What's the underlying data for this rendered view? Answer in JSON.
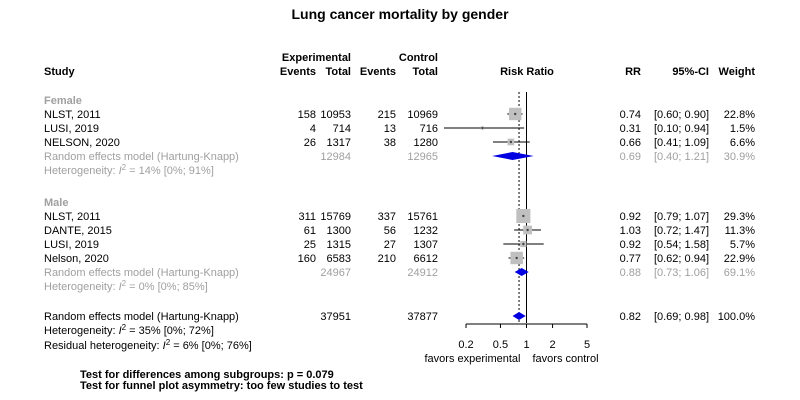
{
  "chart_data": {
    "type": "forest",
    "title": "Lung cancer mortality by gender",
    "columns": {
      "study": "Study",
      "exp_group": "Experimental",
      "ctrl_group": "Control",
      "events": "Events",
      "total": "Total",
      "plot": "Risk Ratio",
      "rr": "RR",
      "ci": "95%-CI",
      "weight": "Weight"
    },
    "subgroups": [
      {
        "name": "Female",
        "studies": [
          {
            "study": "NLST, 2011",
            "exp_events": "158",
            "exp_total": "10953",
            "ctrl_events": "215",
            "ctrl_total": "10969",
            "rr_text": "0.74",
            "ci_text": "[0.60; 0.90]",
            "weight_text": "22.8%",
            "rr": 0.74,
            "lower": 0.6,
            "upper": 0.9,
            "weight": 22.8
          },
          {
            "study": "LUSI, 2019",
            "exp_events": "4",
            "exp_total": "714",
            "ctrl_events": "13",
            "ctrl_total": "716",
            "rr_text": "0.31",
            "ci_text": "[0.10; 0.94]",
            "weight_text": "1.5%",
            "rr": 0.31,
            "lower": 0.1,
            "upper": 0.94,
            "weight": 1.5
          },
          {
            "study": "NELSON, 2020",
            "exp_events": "26",
            "exp_total": "1317",
            "ctrl_events": "38",
            "ctrl_total": "1280",
            "rr_text": "0.66",
            "ci_text": "[0.41; 1.09]",
            "weight_text": "6.6%",
            "rr": 0.66,
            "lower": 0.41,
            "upper": 1.09,
            "weight": 6.6
          }
        ],
        "summary": {
          "label": "Random effects model  (Hartung-Knapp)",
          "exp_total": "12984",
          "ctrl_total": "12965",
          "rr_text": "0.69",
          "ci_text": "[0.40; 1.21]",
          "weight_text": "30.9%",
          "rr": 0.69,
          "lower": 0.4,
          "upper": 1.21
        },
        "heterogeneity": {
          "prefix": "Heterogeneity: ",
          "symbol": "I",
          "sup": "2",
          "rest": " = 14% [0%; 91%]"
        }
      },
      {
        "name": "Male",
        "studies": [
          {
            "study": "NLST, 2011",
            "exp_events": "311",
            "exp_total": "15769",
            "ctrl_events": "337",
            "ctrl_total": "15761",
            "rr_text": "0.92",
            "ci_text": "[0.79; 1.07]",
            "weight_text": "29.3%",
            "rr": 0.92,
            "lower": 0.79,
            "upper": 1.07,
            "weight": 29.3
          },
          {
            "study": "DANTE, 2015",
            "exp_events": "61",
            "exp_total": "1300",
            "ctrl_events": "56",
            "ctrl_total": "1232",
            "rr_text": "1.03",
            "ci_text": "[0.72; 1.47]",
            "weight_text": "11.3%",
            "rr": 1.03,
            "lower": 0.72,
            "upper": 1.47,
            "weight": 11.3
          },
          {
            "study": "LUSI, 2019",
            "exp_events": "25",
            "exp_total": "1315",
            "ctrl_events": "27",
            "ctrl_total": "1307",
            "rr_text": "0.92",
            "ci_text": "[0.54; 1.58]",
            "weight_text": "5.7%",
            "rr": 0.92,
            "lower": 0.54,
            "upper": 1.58,
            "weight": 5.7
          },
          {
            "study": "Nelson, 2020",
            "exp_events": "160",
            "exp_total": "6583",
            "ctrl_events": "210",
            "ctrl_total": "6612",
            "rr_text": "0.77",
            "ci_text": "[0.62; 0.94]",
            "weight_text": "22.9%",
            "rr": 0.77,
            "lower": 0.62,
            "upper": 0.94,
            "weight": 22.9
          }
        ],
        "summary": {
          "label": "Random effects model  (Hartung-Knapp)",
          "exp_total": "24967",
          "ctrl_total": "24912",
          "rr_text": "0.88",
          "ci_text": "[0.73; 1.06]",
          "weight_text": "69.1%",
          "rr": 0.88,
          "lower": 0.73,
          "upper": 1.06
        },
        "heterogeneity": {
          "prefix": "Heterogeneity: ",
          "symbol": "I",
          "sup": "2",
          "rest": " = 0% [0%; 85%]"
        }
      }
    ],
    "overall": {
      "label": "Random effects model  (Hartung-Knapp)",
      "exp_total": "37951",
      "ctrl_total": "37877",
      "rr_text": "0.82",
      "ci_text": "[0.69; 0.98]",
      "weight_text": "100.0%",
      "rr": 0.82,
      "lower": 0.69,
      "upper": 0.98,
      "heterogeneity": {
        "prefix": "Heterogeneity: ",
        "symbol": "I",
        "sup": "2",
        "rest": " = 35% [0%; 72%]"
      },
      "residual": {
        "prefix": "Residual heterogeneity: ",
        "symbol": "I",
        "sup": "2",
        "rest": " = 6% [0%; 76%]"
      }
    },
    "x_axis": {
      "scale": "log",
      "ticks": [
        0.2,
        0.5,
        1,
        2,
        5
      ],
      "tick_labels": [
        "0.2",
        "0.5",
        "1",
        "2",
        "5"
      ],
      "range": [
        0.2,
        5
      ],
      "reference": 1,
      "label_left": "favors experimental",
      "label_right": "favors control"
    },
    "tests": [
      "Test for differences among subgroups: p = 0.079",
      "Test for funnel plot asymmetry: too few studies to test"
    ],
    "colors": {
      "study_square": "#c0c0c0",
      "diamond": "#0000e0",
      "subgroup_text": "#a0a0a0",
      "text": "#000000"
    }
  }
}
